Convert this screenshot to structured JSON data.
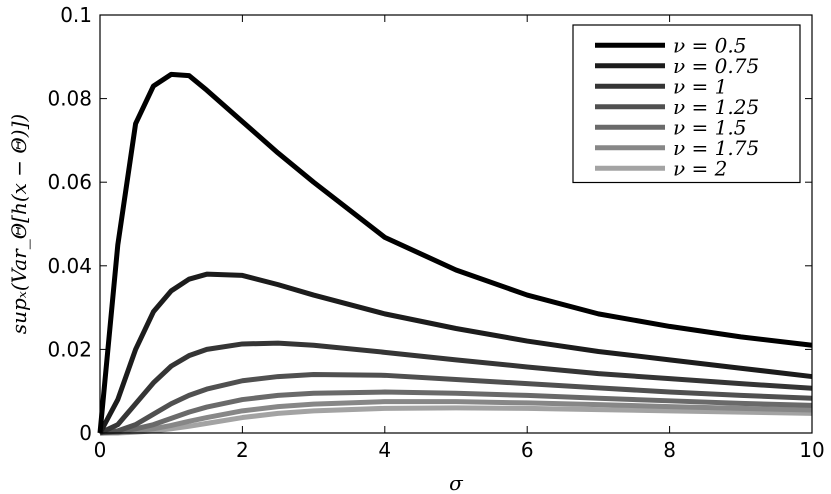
{
  "chart_data": {
    "type": "line",
    "x_label": "σ",
    "y_label": "supₓ(Var_Θ[h(x − Θ)])",
    "x": [
      0,
      0.25,
      0.5,
      0.75,
      1,
      1.25,
      1.5,
      2,
      2.5,
      3,
      4,
      5,
      6,
      7,
      8,
      9,
      10
    ],
    "series": [
      {
        "name": "ν = 0.5",
        "color": "#000000",
        "values": [
          0,
          0.045,
          0.074,
          0.083,
          0.0858,
          0.0855,
          0.082,
          0.0745,
          0.067,
          0.06,
          0.0468,
          0.039,
          0.033,
          0.0285,
          0.0255,
          0.023,
          0.021
        ]
      },
      {
        "name": "ν = 0.75",
        "color": "#1c1c1c",
        "values": [
          0,
          0.008,
          0.02,
          0.029,
          0.034,
          0.0368,
          0.038,
          0.0377,
          0.0355,
          0.033,
          0.0285,
          0.025,
          0.022,
          0.0195,
          0.0175,
          0.0155,
          0.0135
        ]
      },
      {
        "name": "ν = 1",
        "color": "#353535",
        "values": [
          0,
          0.002,
          0.007,
          0.012,
          0.016,
          0.0185,
          0.02,
          0.0213,
          0.0215,
          0.021,
          0.0193,
          0.0175,
          0.0158,
          0.0142,
          0.013,
          0.0118,
          0.0107
        ]
      },
      {
        "name": "ν = 1.25",
        "color": "#505050",
        "values": [
          0,
          0.0005,
          0.002,
          0.0045,
          0.007,
          0.009,
          0.0105,
          0.0125,
          0.0135,
          0.014,
          0.0138,
          0.0128,
          0.0118,
          0.0108,
          0.0098,
          0.009,
          0.0083
        ]
      },
      {
        "name": "ν = 1.5",
        "color": "#6a6a6a",
        "values": [
          0,
          0.0002,
          0.001,
          0.002,
          0.0035,
          0.005,
          0.0062,
          0.008,
          0.009,
          0.0095,
          0.0098,
          0.0095,
          0.009,
          0.0083,
          0.0077,
          0.0071,
          0.0066
        ]
      },
      {
        "name": "ν = 1.75",
        "color": "#878787",
        "values": [
          0,
          0.0001,
          0.0005,
          0.001,
          0.0018,
          0.0028,
          0.0037,
          0.0053,
          0.0063,
          0.0069,
          0.0075,
          0.0075,
          0.0072,
          0.0068,
          0.0063,
          0.0059,
          0.0055
        ]
      },
      {
        "name": "ν = 2",
        "color": "#a3a3a3",
        "values": [
          0,
          0,
          0.0002,
          0.0005,
          0.001,
          0.0016,
          0.0023,
          0.0037,
          0.0047,
          0.0053,
          0.0059,
          0.006,
          0.0059,
          0.0056,
          0.0053,
          0.005,
          0.0047
        ]
      }
    ],
    "xlim": [
      0,
      10
    ],
    "xticks": [
      0,
      2,
      4,
      6,
      8,
      10
    ],
    "ylim": [
      0,
      0.1
    ],
    "yticks": [
      0,
      0.02,
      0.04,
      0.06,
      0.08,
      0.1
    ],
    "legend": "upper right"
  }
}
